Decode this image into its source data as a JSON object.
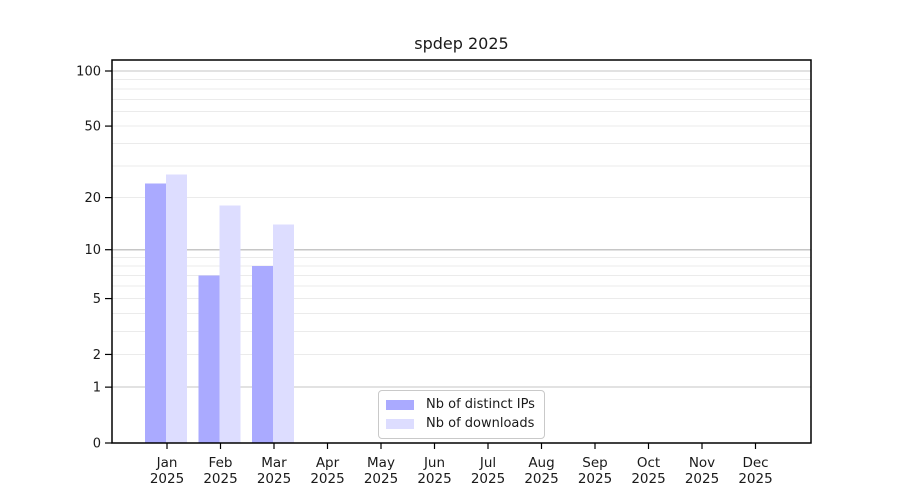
{
  "chart_data": {
    "type": "bar",
    "title": "spdep 2025",
    "xlabel": "",
    "ylabel": "",
    "year": "2025",
    "categories": [
      "Jan",
      "Feb",
      "Mar",
      "Apr",
      "May",
      "Jun",
      "Jul",
      "Aug",
      "Sep",
      "Oct",
      "Nov",
      "Dec"
    ],
    "series": [
      {
        "name": "Nb of distinct IPs",
        "color": "#aaaaff",
        "values": [
          24,
          7,
          8,
          0,
          0,
          0,
          0,
          0,
          0,
          0,
          0,
          0
        ]
      },
      {
        "name": "Nb of downloads",
        "color": "#ddddff",
        "values": [
          27,
          18,
          14,
          0,
          0,
          0,
          0,
          0,
          0,
          0,
          0,
          0
        ]
      }
    ],
    "y_axis": {
      "scale": "log1p",
      "tick_labels": [
        0,
        1,
        2,
        5,
        10,
        20,
        50,
        100
      ],
      "major_gridlines": [
        1,
        10,
        100
      ],
      "minor_gridlines": [
        2,
        3,
        4,
        5,
        6,
        7,
        8,
        9,
        20,
        30,
        40,
        50,
        60,
        70,
        80,
        90
      ],
      "range": [
        0,
        115
      ],
      "grid": true
    },
    "x_axis": {
      "grid": false
    },
    "legend": {
      "position": "lower-center"
    },
    "colors": {
      "axis": "#000000",
      "text": "#1a1a1a",
      "major_grid": "#c6c6c6",
      "minor_grid": "#ebebeb",
      "background": "#ffffff"
    }
  }
}
